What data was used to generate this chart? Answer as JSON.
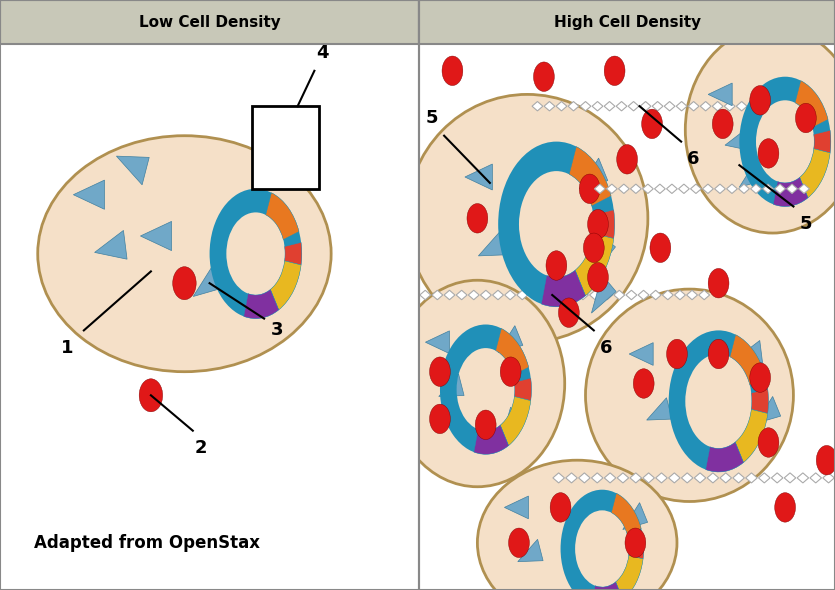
{
  "bg_color": "#ffffff",
  "header_color": "#c8c8b8",
  "border_color": "#888888",
  "cell_fill": "#f5e0c8",
  "cell_border": "#b09050",
  "ring_blue": "#2090b8",
  "red_dot": "#e01818",
  "triangle_fill": "#70a8c8",
  "dna_fill": "#ffffff",
  "dna_edge": "#aaaaaa",
  "seg_orange": "#e87820",
  "seg_red": "#e04030",
  "seg_yellow": "#e8b820",
  "seg_purple": "#8030a0",
  "seg_teal": "#40a0a0",
  "title_left": "Low Cell Density",
  "title_right": "High Cell Density",
  "attribution": "Adapted from OpenStax"
}
